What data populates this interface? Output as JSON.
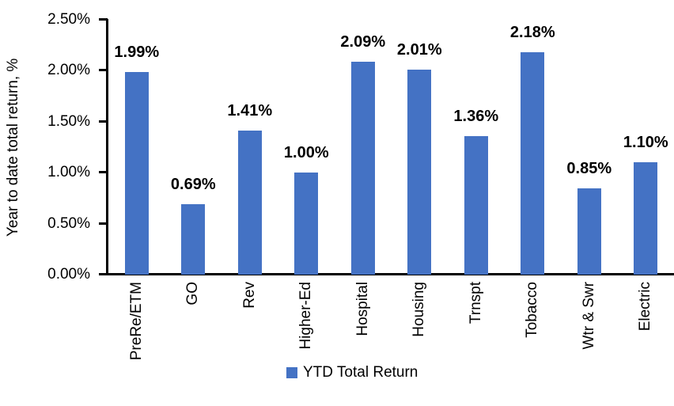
{
  "chart_data": {
    "type": "bar",
    "title": "",
    "ylabel": "Year to date total return, %",
    "xlabel": "",
    "ylim": [
      0,
      2.5
    ],
    "grid": false,
    "bar_color": "#4472C4",
    "axis_color": "#000000",
    "yticks": [
      {
        "label": "0.00%",
        "value": 0
      },
      {
        "label": "0.50%",
        "value": 0.5
      },
      {
        "label": "1.00%",
        "value": 1.0
      },
      {
        "label": "1.50%",
        "value": 1.5
      },
      {
        "label": "2.00%",
        "value": 2.0
      },
      {
        "label": "2.50%",
        "value": 2.5
      }
    ],
    "categories": [
      "PreRe/ETM",
      "GO",
      "Rev",
      "Higher-Ed",
      "Hospital",
      "Housing",
      "Trnspt",
      "Tobacco",
      "Wtr & Swr",
      "Electric"
    ],
    "values": [
      1.99,
      0.69,
      1.41,
      1.0,
      2.09,
      2.01,
      1.36,
      2.18,
      0.85,
      1.1
    ],
    "value_labels": [
      "1.99%",
      "0.69%",
      "1.41%",
      "1.00%",
      "2.09%",
      "2.01%",
      "1.36%",
      "2.18%",
      "0.85%",
      "1.10%"
    ],
    "legend": [
      {
        "label": "YTD Total Return",
        "color": "#4472C4"
      }
    ],
    "legend_position": "bottom"
  }
}
